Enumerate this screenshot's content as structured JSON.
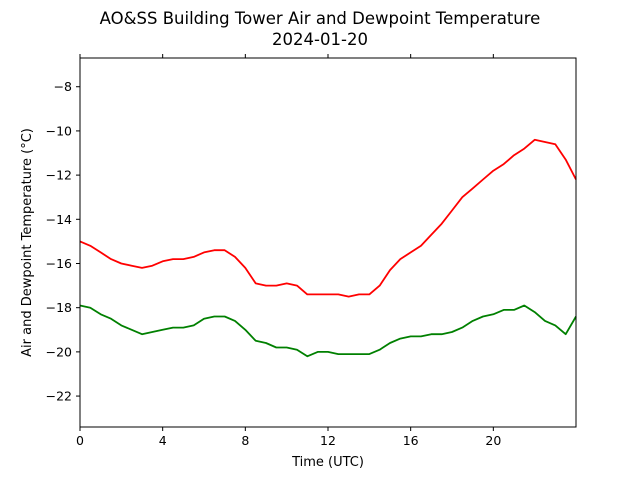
{
  "chart_data": {
    "type": "line",
    "title": "AO&SS Building Tower Air and Dewpoint Temperature",
    "subtitle": "2024-01-20",
    "xlabel": "Time (UTC)",
    "ylabel": "Air and Dewpoint Temperature (°C)",
    "xlim": [
      0,
      24
    ],
    "ylim": [
      -23.4,
      -6.7
    ],
    "x_ticks": [
      0,
      4,
      8,
      12,
      16,
      20
    ],
    "x_tick_labels": [
      "0",
      "4",
      "8",
      "12",
      "16",
      "20"
    ],
    "y_ticks": [
      -22,
      -20,
      -18,
      -16,
      -14,
      -12,
      -10,
      -8
    ],
    "y_tick_labels": [
      "−22",
      "−20",
      "−18",
      "−16",
      "−14",
      "−12",
      "−10",
      "−8"
    ],
    "grid": false,
    "legend": "none",
    "series": [
      {
        "color": "#ff0000",
        "x": [
          0,
          0.5,
          1,
          1.5,
          2,
          2.5,
          3,
          3.5,
          4,
          4.5,
          5,
          5.5,
          6,
          6.5,
          7,
          7.5,
          8,
          8.5,
          9,
          9.5,
          10,
          10.5,
          11,
          11.5,
          12,
          12.5,
          13,
          13.5,
          14,
          14.5,
          15,
          15.5,
          16,
          16.5,
          17,
          17.5,
          18,
          18.5,
          19,
          19.5,
          20,
          20.5,
          21,
          21.5,
          22,
          22.5,
          23,
          23.5,
          24
        ],
        "values": [
          -15.0,
          -15.2,
          -15.5,
          -15.8,
          -16.0,
          -16.1,
          -16.2,
          -16.1,
          -15.9,
          -15.8,
          -15.8,
          -15.7,
          -15.5,
          -15.4,
          -15.4,
          -15.7,
          -16.2,
          -16.9,
          -17.0,
          -17.0,
          -16.9,
          -17.0,
          -17.4,
          -17.4,
          -17.4,
          -17.4,
          -17.5,
          -17.4,
          -17.4,
          -17.0,
          -16.3,
          -15.8,
          -15.5,
          -15.2,
          -14.7,
          -14.2,
          -13.6,
          -13.0,
          -12.6,
          -12.2,
          -11.8,
          -11.5,
          -11.1,
          -10.8,
          -10.4,
          -10.5,
          -10.6,
          -11.3,
          -12.2
        ]
      },
      {
        "color": "#008000",
        "x": [
          0,
          0.5,
          1,
          1.5,
          2,
          2.5,
          3,
          3.5,
          4,
          4.5,
          5,
          5.5,
          6,
          6.5,
          7,
          7.5,
          8,
          8.5,
          9,
          9.5,
          10,
          10.5,
          11,
          11.5,
          12,
          12.5,
          13,
          13.5,
          14,
          14.5,
          15,
          15.5,
          16,
          16.5,
          17,
          17.5,
          18,
          18.5,
          19,
          19.5,
          20,
          20.5,
          21,
          21.5,
          22,
          22.5,
          23,
          23.5,
          24
        ],
        "values": [
          -17.9,
          -18.0,
          -18.3,
          -18.5,
          -18.8,
          -19.0,
          -19.2,
          -19.1,
          -19.0,
          -18.9,
          -18.9,
          -18.8,
          -18.5,
          -18.4,
          -18.4,
          -18.6,
          -19.0,
          -19.5,
          -19.6,
          -19.8,
          -19.8,
          -19.9,
          -20.2,
          -20.0,
          -20.0,
          -20.1,
          -20.1,
          -20.1,
          -20.1,
          -19.9,
          -19.6,
          -19.4,
          -19.3,
          -19.3,
          -19.2,
          -19.2,
          -19.1,
          -18.9,
          -18.6,
          -18.4,
          -18.3,
          -18.1,
          -18.1,
          -17.9,
          -18.2,
          -18.6,
          -18.8,
          -19.2,
          -18.4
        ]
      }
    ]
  }
}
